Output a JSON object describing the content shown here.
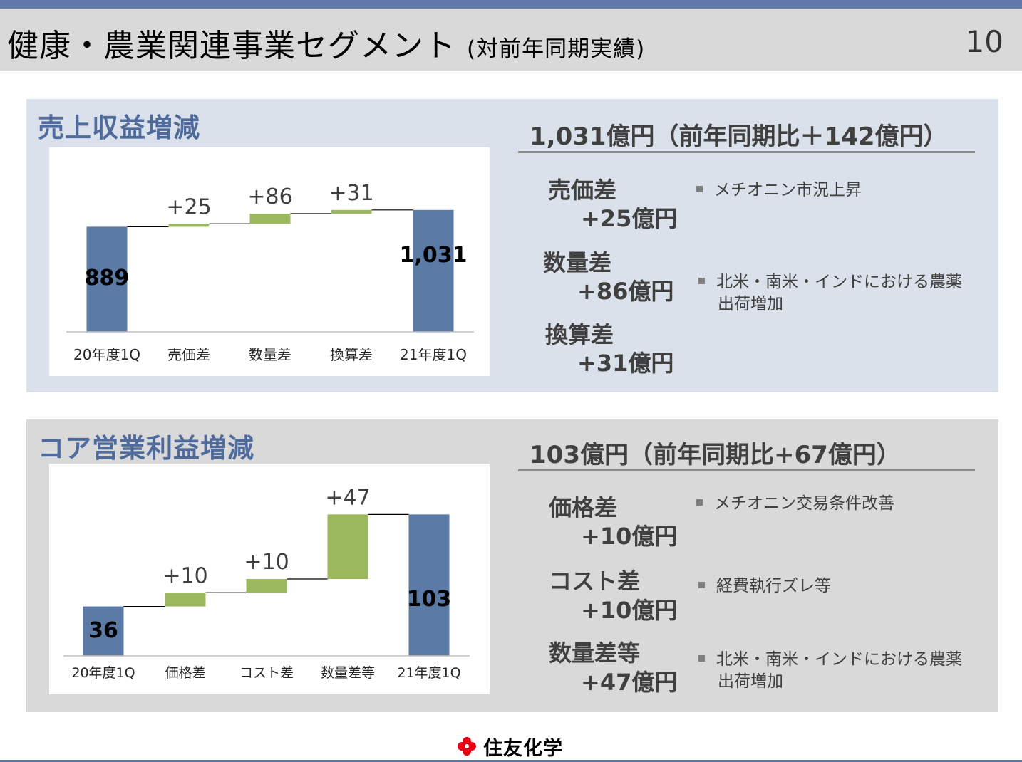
{
  "header": {
    "title": "健康・農業関連事業セグメント",
    "subtitle": "(対前年同期実績)",
    "page_number": "10"
  },
  "revenue": {
    "title": "売上収益増減",
    "headline": "1,031億円（前年同期比＋142億円）",
    "items": [
      {
        "label": "売価差",
        "value": "+25億円",
        "note": [
          "メチオニン市況上昇"
        ]
      },
      {
        "label": "数量差",
        "value": "+86億円",
        "note": [
          "北米・南米・インドにおける農薬",
          "出荷増加"
        ]
      },
      {
        "label": "換算差",
        "value": "+31億円",
        "note": []
      }
    ]
  },
  "profit": {
    "title": "コア営業利益増減",
    "headline": "103億円（前年同期比+67億円）",
    "items": [
      {
        "label": "価格差",
        "value": "+10億円",
        "note": [
          "メチオニン交易条件改善"
        ]
      },
      {
        "label": "コスト差",
        "value": "+10億円",
        "note": [
          "経費執行ズレ等"
        ]
      },
      {
        "label": "数量差等",
        "value": "+47億円",
        "note": [
          "北米・南米・インドにおける農薬",
          "出荷増加"
        ]
      }
    ]
  },
  "footer": {
    "company": "住友化学"
  },
  "colors": {
    "total": "#5b7aa5",
    "increase": "#9bb85f",
    "accent": "#4e6b9c",
    "band": "#5f79a8"
  },
  "chart_data": [
    {
      "type": "bar",
      "subtype": "waterfall",
      "categories": [
        "20年度1Q",
        "売価差",
        "数量差",
        "換算差",
        "21年度1Q"
      ],
      "values": [
        889,
        25,
        86,
        31,
        1031
      ],
      "labels": [
        "889",
        "+25",
        "+86",
        "+31",
        "1,031"
      ],
      "kinds": [
        "total",
        "delta",
        "delta",
        "delta",
        "total"
      ],
      "ylim": [
        0,
        1560
      ]
    },
    {
      "type": "bar",
      "subtype": "waterfall",
      "categories": [
        "20年度1Q",
        "価格差",
        "コスト差",
        "数量差等",
        "21年度1Q"
      ],
      "values": [
        36,
        10,
        10,
        47,
        103
      ],
      "labels": [
        "36",
        "+10",
        "+10",
        "+47",
        "103"
      ],
      "kinds": [
        "total",
        "delta",
        "delta",
        "delta",
        "total"
      ],
      "ylim": [
        0,
        140
      ]
    }
  ]
}
